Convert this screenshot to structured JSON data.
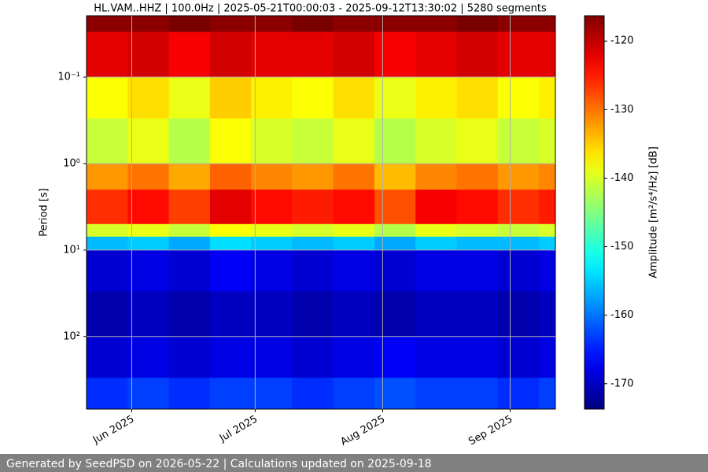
{
  "chart_data": {
    "type": "spectrogram",
    "title": "HL.VAM..HHZ | 100.0Hz | 2025-05-21T00:00:03 - 2025-09-12T13:30:02 | 5280 segments",
    "ylabel": "Period [s]",
    "colorbar_label": "Amplitude [m²/s⁴/Hz] [dB]",
    "footer": "Generated by SeedPSD on 2026-05-22 | Calculations updated on 2025-09-18",
    "colormap": "jet",
    "grid": true,
    "ylog": true,
    "yinverted": true,
    "xlim": [
      "2025-05-21",
      "2025-09-12"
    ],
    "xticks": [
      {
        "value": "2025-06-01",
        "label": "Jun 2025"
      },
      {
        "value": "2025-07-01",
        "label": "Jul 2025"
      },
      {
        "value": "2025-08-01",
        "label": "Aug 2025"
      },
      {
        "value": "2025-09-01",
        "label": "Sep 2025"
      }
    ],
    "ylim": [
      0.0195,
      690
    ],
    "yticks": [
      {
        "value": 0.1,
        "label": "10⁻¹"
      },
      {
        "value": 1,
        "label": "10⁰"
      },
      {
        "value": 10,
        "label": "10¹"
      },
      {
        "value": 100,
        "label": "10²"
      }
    ],
    "clim": [
      -173.7,
      -116.3
    ],
    "cticks": [
      -120,
      -130,
      -140,
      -150,
      -160,
      -170
    ],
    "x_edges": [
      "2025-05-21",
      "2025-05-31",
      "2025-06-10",
      "2025-06-20",
      "2025-06-30",
      "2025-07-10",
      "2025-07-20",
      "2025-07-30",
      "2025-08-09",
      "2025-08-19",
      "2025-08-29",
      "2025-09-08",
      "2025-09-12"
    ],
    "y_edges": [
      0.0195,
      0.03,
      0.1,
      0.3,
      1,
      2,
      5,
      7,
      10,
      30,
      100,
      300,
      690
    ],
    "z": [
      [
        -117,
        -117,
        -116,
        -117,
        -117,
        -116,
        -117,
        -117,
        -117,
        -116,
        -117,
        -117
      ],
      [
        -122,
        -121,
        -123,
        -121,
        -122,
        -122,
        -121,
        -123,
        -122,
        -121,
        -122,
        -122
      ],
      [
        -138,
        -136,
        -139,
        -135,
        -137,
        -138,
        -136,
        -139,
        -137,
        -136,
        -138,
        -137
      ],
      [
        -141,
        -139,
        -142,
        -138,
        -140,
        -141,
        -139,
        -142,
        -140,
        -139,
        -141,
        -140
      ],
      [
        -132,
        -130,
        -133,
        -129,
        -131,
        -132,
        -130,
        -134,
        -131,
        -130,
        -132,
        -131
      ],
      [
        -126,
        -124,
        -127,
        -122,
        -124,
        -125,
        -124,
        -128,
        -123,
        -124,
        -126,
        -125
      ],
      [
        -140,
        -139,
        -141,
        -138,
        -139,
        -140,
        -139,
        -142,
        -139,
        -140,
        -141,
        -140
      ],
      [
        -156,
        -155,
        -157,
        -154,
        -155,
        -156,
        -155,
        -157,
        -155,
        -156,
        -156,
        -155
      ],
      [
        -169,
        -168,
        -169,
        -167,
        -168,
        -169,
        -168,
        -169,
        -168,
        -168,
        -169,
        -168
      ],
      [
        -171,
        -170,
        -171,
        -170,
        -170,
        -171,
        -170,
        -171,
        -170,
        -170,
        -171,
        -170
      ],
      [
        -169,
        -168,
        -169,
        -168,
        -168,
        -169,
        -168,
        -167,
        -168,
        -168,
        -169,
        -168
      ],
      [
        -164,
        -163,
        -164,
        -163,
        -163,
        -164,
        -163,
        -162,
        -163,
        -163,
        -164,
        -163
      ]
    ]
  }
}
